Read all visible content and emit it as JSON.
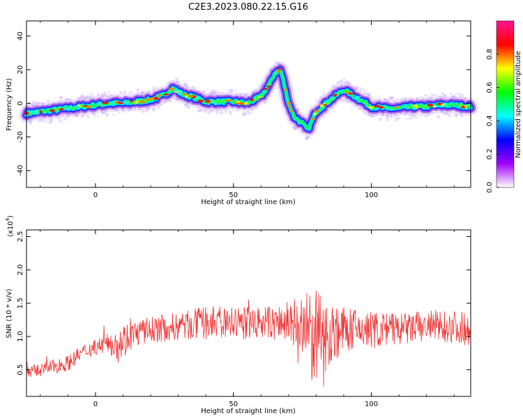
{
  "title": "C2E3.2023.080.22.15.G16",
  "chart_data": [
    {
      "type": "heatmap",
      "xlabel": "Height of straight line (km)",
      "ylabel": "Frequency (Hz)",
      "xlim": [
        -25,
        136
      ],
      "ylim": [
        -50,
        49
      ],
      "xticks": [
        0,
        50,
        100
      ],
      "xtick_labels": [
        "0",
        "50",
        "100"
      ],
      "yticks": [
        -40,
        -20,
        0,
        20,
        40
      ],
      "ytick_labels": [
        "-40",
        "-20",
        "0",
        "20",
        "40"
      ],
      "ridge": {
        "x": [
          -25,
          -20,
          -15,
          -10,
          -5,
          0,
          5,
          10,
          15,
          20,
          25,
          28,
          30,
          32,
          35,
          38,
          40,
          45,
          50,
          55,
          60,
          63,
          65,
          67,
          68,
          70,
          72,
          75,
          77,
          80,
          85,
          90,
          95,
          100,
          105,
          110,
          115,
          120,
          125,
          130,
          136
        ],
        "y": [
          -6,
          -5,
          -4,
          -3,
          -2,
          -1,
          0,
          0,
          1,
          2,
          5,
          9,
          7,
          5,
          4,
          2,
          1,
          1,
          1,
          0,
          4,
          11,
          18,
          20,
          14,
          0,
          -8,
          -12,
          -16,
          -5,
          2,
          8,
          3,
          -2,
          -3,
          -3,
          -2,
          -2,
          -1,
          -1,
          -2
        ]
      },
      "colorbar": {
        "label": "Normalized spectral amplitude",
        "range": [
          0,
          1
        ],
        "ticks": [
          0.0,
          0.2,
          0.4,
          0.6,
          0.8
        ],
        "tick_labels": [
          "0.0",
          "0.2",
          "0.4",
          "0.6",
          "0.8"
        ],
        "colors": [
          "#ffffff",
          "#a000ff",
          "#0000ff",
          "#00ffff",
          "#00ff00",
          "#ffff00",
          "#ff0000",
          "#ff1493"
        ]
      }
    },
    {
      "type": "line",
      "xlabel": "Height of straight line (km)",
      "ylabel": "SNR (10 * v/v)",
      "y_multiplier_label": "(x10",
      "y_multiplier_exp": "4",
      "xlim": [
        -25,
        136
      ],
      "ylim": [
        0.1,
        2.6
      ],
      "xticks": [
        0,
        50,
        100
      ],
      "xtick_labels": [
        "0",
        "50",
        "100"
      ],
      "yticks": [
        0.5,
        1.0,
        1.5,
        2.0,
        2.5
      ],
      "ytick_labels": [
        "0.5",
        "1.0",
        "1.5",
        "2.0",
        "2.5"
      ],
      "series_color": "#f03030",
      "envelope": {
        "x": [
          -25,
          -20,
          -10,
          -5,
          0,
          5,
          8,
          15,
          20,
          30,
          40,
          50,
          60,
          70,
          73,
          75,
          78,
          80,
          82,
          85,
          90,
          95,
          100,
          110,
          120,
          130,
          136
        ],
        "mean": [
          0.45,
          0.5,
          0.6,
          0.75,
          0.85,
          0.9,
          0.9,
          1.05,
          1.1,
          1.15,
          1.2,
          1.2,
          1.2,
          1.2,
          1.15,
          1.05,
          1.0,
          0.95,
          1.0,
          1.05,
          1.1,
          1.1,
          1.1,
          1.1,
          1.15,
          1.15,
          1.1
        ],
        "spread": [
          0.1,
          0.1,
          0.12,
          0.12,
          0.12,
          0.15,
          0.3,
          0.2,
          0.2,
          0.22,
          0.25,
          0.25,
          0.25,
          0.3,
          0.45,
          0.6,
          0.7,
          0.75,
          0.6,
          0.5,
          0.35,
          0.3,
          0.3,
          0.25,
          0.25,
          0.25,
          0.25
        ]
      }
    }
  ]
}
